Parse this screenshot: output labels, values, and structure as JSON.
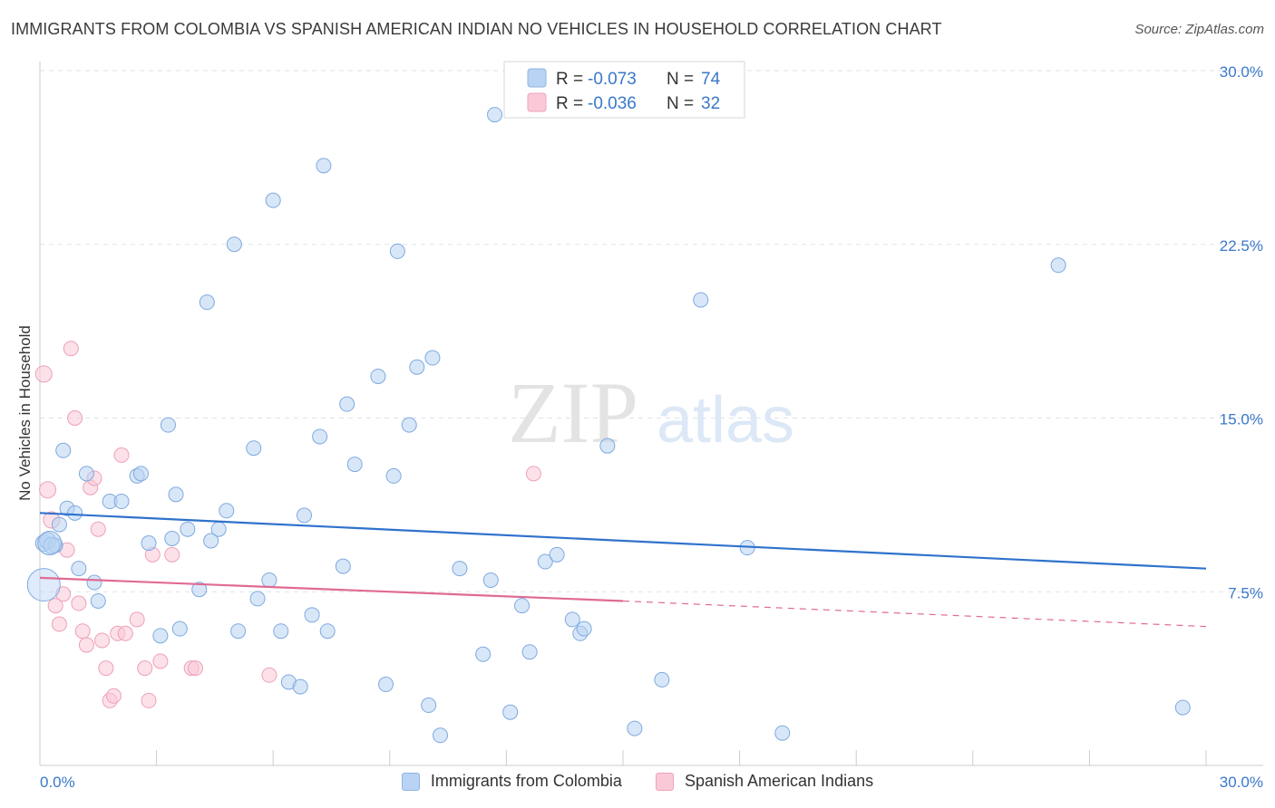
{
  "header": {
    "title": "IMMIGRANTS FROM COLOMBIA VS SPANISH AMERICAN INDIAN NO VEHICLES IN HOUSEHOLD CORRELATION CHART",
    "source": "Source: ZipAtlas.com"
  },
  "watermark": {
    "zip": "ZIP",
    "atlas": "atlas"
  },
  "colors": {
    "blue_fill": "#b8d3f3",
    "blue_stroke": "#7fa9e0",
    "blue_line": "#2f72cc",
    "pink_fill": "#f9c9d7",
    "pink_stroke": "#eea0b8",
    "pink_line": "#e06a93",
    "value_text": "#3a78c9",
    "grid": "#dde2ea"
  },
  "legend_top": [
    {
      "r_label": "R =",
      "r_value": "-0.073",
      "n_label": "N =",
      "n_value": "74"
    },
    {
      "r_label": "R =",
      "r_value": "-0.036",
      "n_label": "N =",
      "n_value": "32"
    }
  ],
  "chart_data": {
    "type": "scatter",
    "title": "IMMIGRANTS FROM COLOMBIA VS SPANISH AMERICAN INDIAN NO VEHICLES IN HOUSEHOLD CORRELATION CHART",
    "xlabel": "",
    "ylabel": "No Vehicles in Household",
    "xlim": [
      0,
      30
    ],
    "ylim": [
      0,
      30
    ],
    "x_tick_labels": [
      "0.0%",
      "30.0%"
    ],
    "y_ticks": [
      7.5,
      15.0,
      22.5,
      30.0
    ],
    "y_tick_labels": [
      "7.5%",
      "15.0%",
      "22.5%",
      "30.0%"
    ],
    "grid": true,
    "legend_position": "top-center",
    "series": [
      {
        "name": "Immigrants from Colombia",
        "color": "blue",
        "r": -0.073,
        "n": 74,
        "trend": {
          "x0": 0,
          "y0": 10.9,
          "x1": 30,
          "y1": 8.5
        },
        "points": [
          [
            0.1,
            9.6
          ],
          [
            0.2,
            9.7
          ],
          [
            0.4,
            9.5
          ],
          [
            0.5,
            10.4
          ],
          [
            0.6,
            13.6
          ],
          [
            0.7,
            11.1
          ],
          [
            0.9,
            10.9
          ],
          [
            1.0,
            8.5
          ],
          [
            1.2,
            12.6
          ],
          [
            1.4,
            7.9
          ],
          [
            1.5,
            7.1
          ],
          [
            1.8,
            11.4
          ],
          [
            2.1,
            11.4
          ],
          [
            2.5,
            12.5
          ],
          [
            2.6,
            12.6
          ],
          [
            2.8,
            9.6
          ],
          [
            3.1,
            5.6
          ],
          [
            3.3,
            14.7
          ],
          [
            3.4,
            9.8
          ],
          [
            3.6,
            5.9
          ],
          [
            3.5,
            11.7
          ],
          [
            4.1,
            7.6
          ],
          [
            3.8,
            10.2
          ],
          [
            4.4,
            9.7
          ],
          [
            4.6,
            10.2
          ],
          [
            4.3,
            20.0
          ],
          [
            4.8,
            11.0
          ],
          [
            5.1,
            5.8
          ],
          [
            5.5,
            13.7
          ],
          [
            5.6,
            7.2
          ],
          [
            5.9,
            8.0
          ],
          [
            5.0,
            22.5
          ],
          [
            6.0,
            24.4
          ],
          [
            6.2,
            5.8
          ],
          [
            6.4,
            3.6
          ],
          [
            6.8,
            10.8
          ],
          [
            6.7,
            3.4
          ],
          [
            7.0,
            6.5
          ],
          [
            7.2,
            14.2
          ],
          [
            7.4,
            5.8
          ],
          [
            7.3,
            25.9
          ],
          [
            7.8,
            8.6
          ],
          [
            7.9,
            15.6
          ],
          [
            8.1,
            13.0
          ],
          [
            8.7,
            16.8
          ],
          [
            8.9,
            3.5
          ],
          [
            9.1,
            12.5
          ],
          [
            9.2,
            22.2
          ],
          [
            9.5,
            14.7
          ],
          [
            9.7,
            17.2
          ],
          [
            10.0,
            2.6
          ],
          [
            10.1,
            17.6
          ],
          [
            10.3,
            1.3
          ],
          [
            10.8,
            8.5
          ],
          [
            11.4,
            4.8
          ],
          [
            11.6,
            8.0
          ],
          [
            11.7,
            28.1
          ],
          [
            12.1,
            2.3
          ],
          [
            12.4,
            6.9
          ],
          [
            12.6,
            4.9
          ],
          [
            13.0,
            8.8
          ],
          [
            13.3,
            9.1
          ],
          [
            13.7,
            6.3
          ],
          [
            13.9,
            5.7
          ],
          [
            14.0,
            5.9
          ],
          [
            14.6,
            13.8
          ],
          [
            15.3,
            1.6
          ],
          [
            16.0,
            3.7
          ],
          [
            17.0,
            20.1
          ],
          [
            18.2,
            9.4
          ],
          [
            19.1,
            1.4
          ],
          [
            26.2,
            21.6
          ],
          [
            29.4,
            2.5
          ],
          [
            0.3,
            9.5
          ]
        ]
      },
      {
        "name": "Spanish American Indians",
        "color": "pink",
        "r": -0.036,
        "n": 32,
        "trend": {
          "x0": 0,
          "y0": 8.1,
          "x1": 15.0,
          "y1": 7.1,
          "dashed_to": 30,
          "dashed_y": 6.0
        },
        "points": [
          [
            0.1,
            16.9
          ],
          [
            0.2,
            11.9
          ],
          [
            0.3,
            10.6
          ],
          [
            0.4,
            6.9
          ],
          [
            0.5,
            6.1
          ],
          [
            0.6,
            7.4
          ],
          [
            0.7,
            9.3
          ],
          [
            0.8,
            18.0
          ],
          [
            0.9,
            15.0
          ],
          [
            1.0,
            7.0
          ],
          [
            1.1,
            5.8
          ],
          [
            1.2,
            5.2
          ],
          [
            1.3,
            12.0
          ],
          [
            1.4,
            12.4
          ],
          [
            1.5,
            10.2
          ],
          [
            1.6,
            5.4
          ],
          [
            1.7,
            4.2
          ],
          [
            1.8,
            2.8
          ],
          [
            1.9,
            3.0
          ],
          [
            2.0,
            5.7
          ],
          [
            2.1,
            13.4
          ],
          [
            2.2,
            5.7
          ],
          [
            2.5,
            6.3
          ],
          [
            2.7,
            4.2
          ],
          [
            2.8,
            2.8
          ],
          [
            2.9,
            9.1
          ],
          [
            3.1,
            4.5
          ],
          [
            3.4,
            9.1
          ],
          [
            3.9,
            4.2
          ],
          [
            4.0,
            4.2
          ],
          [
            5.9,
            3.9
          ],
          [
            12.7,
            12.6
          ]
        ]
      }
    ]
  },
  "legend_bottom": {
    "items": [
      {
        "label": "Immigrants from Colombia"
      },
      {
        "label": "Spanish American Indians"
      }
    ]
  }
}
